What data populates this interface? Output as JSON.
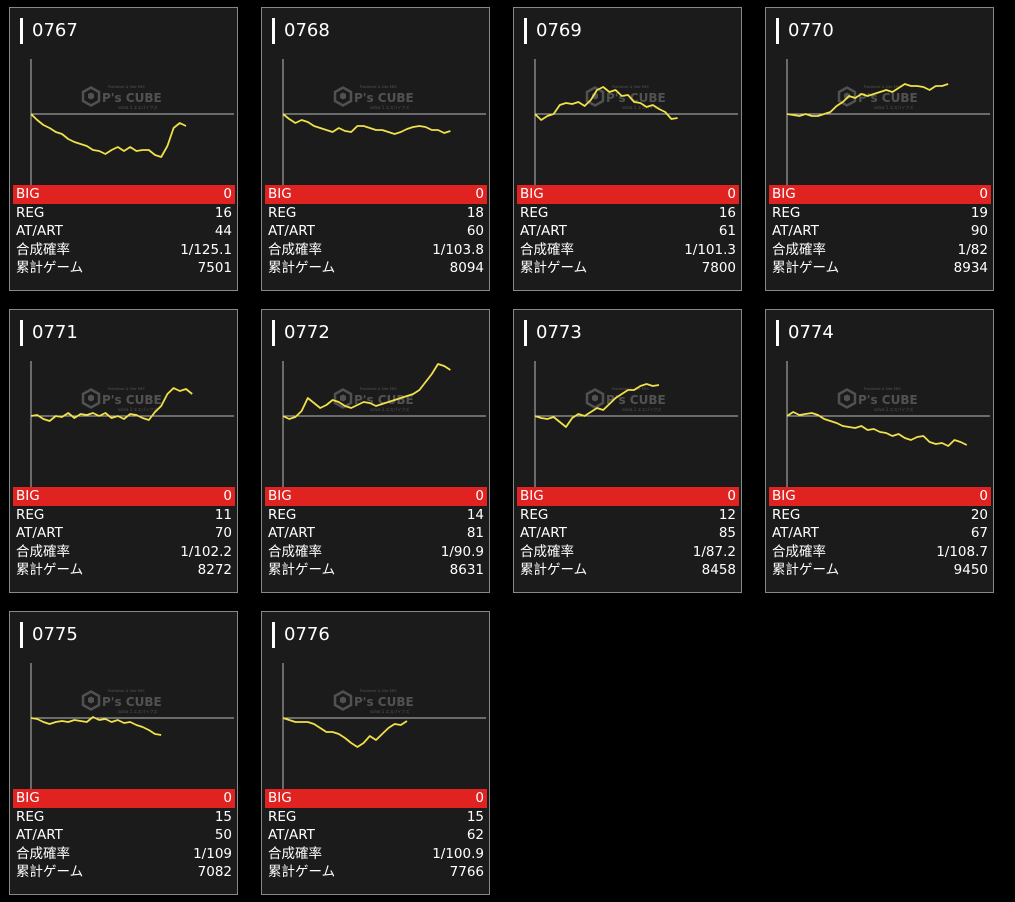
{
  "labels": {
    "big": "BIG",
    "reg": "REG",
    "at_art": "AT/ART",
    "probability": "合成確率",
    "total_games": "累計ゲーム"
  },
  "watermark": {
    "brand": "P's CUBE",
    "tagline": "Publisher & Site ERS",
    "sub": "solva 1 エスパイクズ"
  },
  "colors": {
    "card_bg": "#1b1b1b",
    "big_row": "#e02321",
    "line": "#f0e04a",
    "border": "#888888"
  },
  "machines": [
    {
      "id": "0767",
      "big": "0",
      "reg": "16",
      "at_art": "44",
      "probability": "1/125.1",
      "total_games": "7501",
      "trend": [
        0,
        -6,
        -11,
        -14,
        -18,
        -20,
        -25,
        -28,
        -30,
        -32,
        -36,
        -37,
        -40,
        -36,
        -33,
        -37,
        -33,
        -37,
        -36,
        -36,
        -41,
        -43,
        -32,
        -14,
        -9,
        -12
      ]
    },
    {
      "id": "0768",
      "big": "0",
      "reg": "18",
      "at_art": "60",
      "probability": "1/103.8",
      "total_games": "8094",
      "trend": [
        0,
        -5,
        -9,
        -6,
        -8,
        -12,
        -14,
        -16,
        -18,
        -14,
        -17,
        -18,
        -12,
        -12,
        -14,
        -16,
        -16,
        -18,
        -20,
        -18,
        -15,
        -13,
        -12,
        -13,
        -16,
        -16,
        -19,
        -17
      ]
    },
    {
      "id": "0769",
      "big": "0",
      "reg": "16",
      "at_art": "61",
      "probability": "1/101.3",
      "total_games": "7800",
      "trend": [
        0,
        -6,
        -2,
        0,
        9,
        11,
        10,
        12,
        8,
        14,
        24,
        27,
        22,
        24,
        18,
        19,
        12,
        11,
        7,
        9,
        5,
        2,
        -5,
        -4
      ]
    },
    {
      "id": "0770",
      "big": "0",
      "reg": "19",
      "at_art": "90",
      "probability": "1/82",
      "total_games": "8934",
      "trend": [
        0,
        -1,
        -2,
        0,
        -2,
        -2,
        0,
        2,
        8,
        12,
        18,
        16,
        20,
        18,
        20,
        22,
        24,
        22,
        26,
        30,
        28,
        28,
        27,
        24,
        28,
        28,
        30
      ]
    },
    {
      "id": "0771",
      "big": "0",
      "reg": "11",
      "at_art": "70",
      "probability": "1/102.2",
      "total_games": "8272",
      "trend": [
        0,
        1,
        -3,
        -5,
        0,
        -1,
        3,
        -2,
        2,
        1,
        3,
        0,
        3,
        -2,
        0,
        -3,
        2,
        1,
        -2,
        -4,
        4,
        10,
        22,
        28,
        25,
        27,
        22
      ]
    },
    {
      "id": "0772",
      "big": "0",
      "reg": "14",
      "at_art": "81",
      "probability": "1/90.9",
      "total_games": "8631",
      "trend": [
        0,
        -3,
        -1,
        5,
        18,
        13,
        8,
        11,
        16,
        14,
        10,
        8,
        11,
        14,
        13,
        10,
        12,
        14,
        16,
        18,
        20,
        22,
        26,
        34,
        42,
        52,
        50,
        46
      ]
    },
    {
      "id": "0773",
      "big": "0",
      "reg": "12",
      "at_art": "85",
      "probability": "1/87.2",
      "total_games": "8458",
      "trend": [
        0,
        -2,
        -3,
        -1,
        -6,
        -11,
        -2,
        2,
        0,
        4,
        8,
        6,
        12,
        18,
        22,
        26,
        26,
        30,
        32,
        30,
        31
      ]
    },
    {
      "id": "0774",
      "big": "0",
      "reg": "20",
      "at_art": "67",
      "probability": "1/108.7",
      "total_games": "9450",
      "trend": [
        0,
        4,
        1,
        2,
        3,
        1,
        -3,
        -5,
        -7,
        -10,
        -11,
        -12,
        -10,
        -14,
        -13,
        -16,
        -17,
        -20,
        -18,
        -22,
        -24,
        -21,
        -20,
        -26,
        -28,
        -27,
        -30,
        -24,
        -26,
        -29
      ]
    },
    {
      "id": "0775",
      "big": "0",
      "reg": "15",
      "at_art": "50",
      "probability": "1/109",
      "total_games": "7082",
      "trend": [
        0,
        -1,
        -4,
        -6,
        -4,
        -3,
        -4,
        -2,
        -3,
        -4,
        1,
        -2,
        -1,
        -4,
        -2,
        -5,
        -4,
        -7,
        -9,
        -12,
        -16,
        -17
      ]
    },
    {
      "id": "0776",
      "big": "0",
      "reg": "15",
      "at_art": "62",
      "probability": "1/100.9",
      "total_games": "7766",
      "trend": [
        0,
        -2,
        -4,
        -4,
        -4,
        -6,
        -10,
        -14,
        -14,
        -16,
        -20,
        -25,
        -29,
        -25,
        -18,
        -22,
        -16,
        -10,
        -6,
        -7,
        -3
      ]
    }
  ]
}
